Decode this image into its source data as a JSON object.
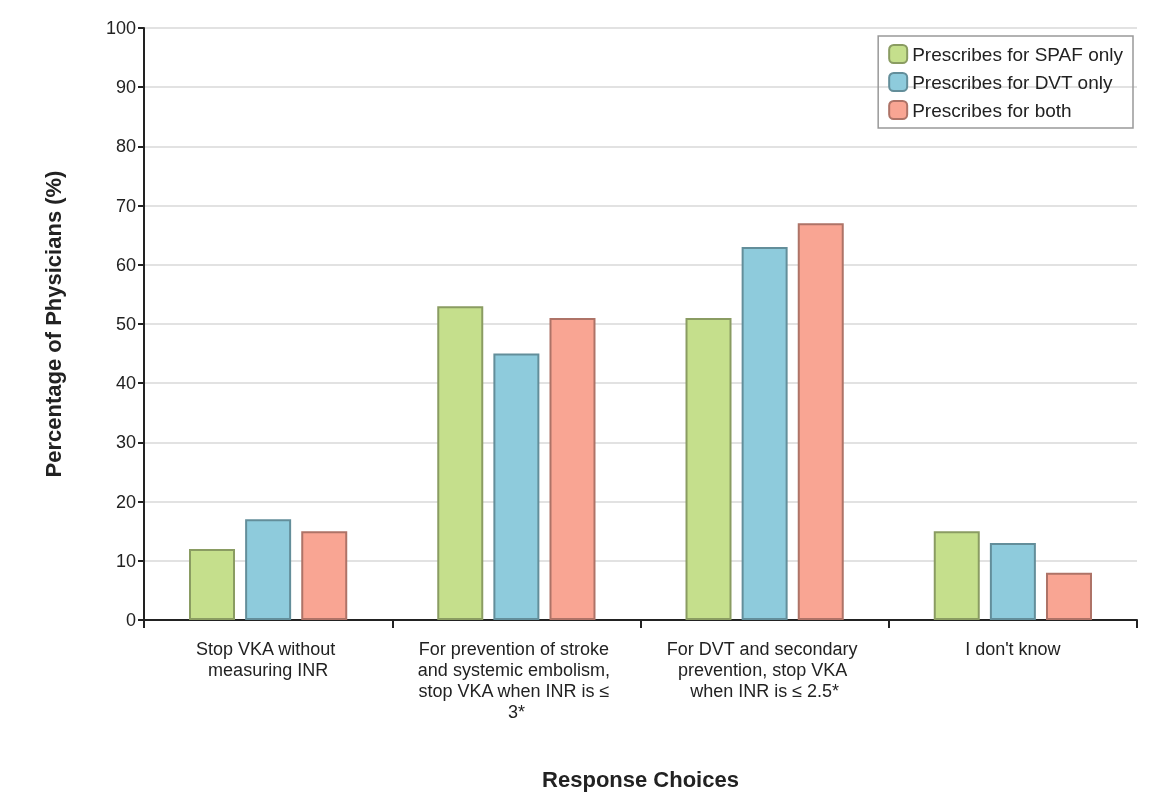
{
  "chart_data": {
    "type": "bar",
    "xlabel": "Response Choices",
    "ylabel": "Percentage of Physicians (%)",
    "categories": [
      "Stop VKA without measuring INR",
      "For prevention of stroke and systemic embolism, stop VKA when INR is ≤ 3*",
      "For DVT and secondary prevention, stop VKA when INR is ≤ 2.5*",
      "I don't know"
    ],
    "series": [
      {
        "name": "Prescribes for SPAF only",
        "color": "#c5df8c",
        "values": [
          12,
          53,
          51,
          15
        ]
      },
      {
        "name": "Prescribes for DVT only",
        "color": "#8ecbdc",
        "values": [
          17,
          45,
          63,
          13
        ]
      },
      {
        "name": "Prescribes for both",
        "color": "#f9a593",
        "values": [
          15,
          51,
          67,
          8
        ]
      }
    ],
    "ylim": [
      0,
      100
    ],
    "yticks": [
      0,
      10,
      20,
      30,
      40,
      50,
      60,
      70,
      80,
      90,
      100
    ],
    "grid": "y",
    "legend": "top right"
  }
}
